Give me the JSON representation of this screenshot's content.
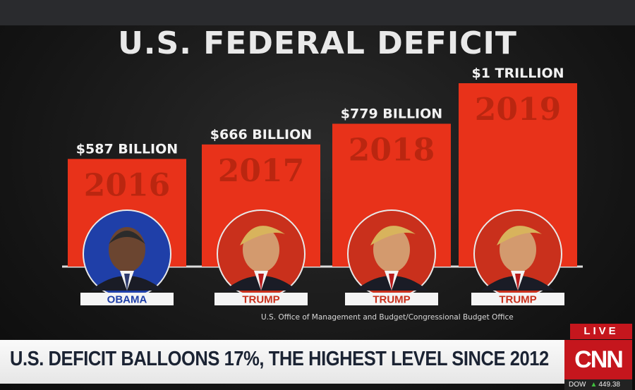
{
  "title": "U.S. FEDERAL DEFICIT",
  "source": "U.S. Office of Management and Budget/Congressional Budget Office",
  "chart_data": {
    "type": "bar",
    "categories": [
      "2016",
      "2017",
      "2018",
      "2019"
    ],
    "values": [
      587,
      666,
      779,
      1000
    ],
    "unit": "billion USD",
    "data_labels": [
      "$587 BILLION",
      "$666 BILLION",
      "$779 BILLION",
      "$1 TRILLION"
    ],
    "president_labels": [
      "OBAMA",
      "TRUMP",
      "TRUMP",
      "TRUMP"
    ],
    "bar_color": "#e8321a",
    "ylim": [
      0,
      1000
    ]
  },
  "ticker": {
    "live": "LIVE",
    "headline": "U.S. DEFICIT BALLOONS 17%, THE HIGHEST LEVEL SINCE 2012",
    "network": "CNN",
    "dow_label": "DOW",
    "dow_value": "449.38"
  },
  "colors": {
    "bar": "#e8321a",
    "obama_circle": "#1f3fa8",
    "trump_circle": "#c9301c",
    "cnn_red": "#c5161d"
  }
}
